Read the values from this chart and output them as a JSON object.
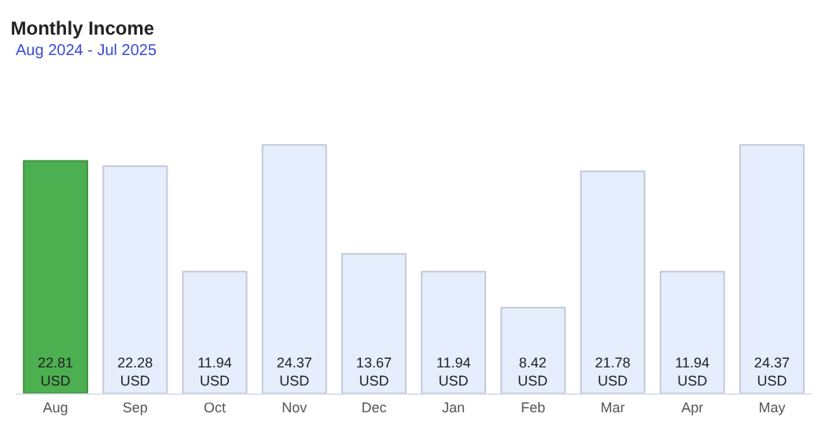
{
  "chart_data": {
    "type": "bar",
    "title": "Monthly Income",
    "subtitle": "Aug 2024 - Jul 2025",
    "categories": [
      "Aug",
      "Sep",
      "Oct",
      "Nov",
      "Dec",
      "Jan",
      "Feb",
      "Mar",
      "Apr",
      "May"
    ],
    "values": [
      22.81,
      22.28,
      11.94,
      24.37,
      13.67,
      11.94,
      8.42,
      21.78,
      11.94,
      24.37
    ],
    "value_labels": [
      "22.81 USD",
      "22.28 USD",
      "11.94 USD",
      "24.37 USD",
      "13.67 USD",
      "11.94 USD",
      "8.42 USD",
      "21.78 USD",
      "11.94 USD",
      "24.37 USD"
    ],
    "colors": [
      "#4caf50",
      "#e6edfd",
      "#e6edfd",
      "#e6edfd",
      "#e6edfd",
      "#e6edfd",
      "#e6edfd",
      "#e6edfd",
      "#e6edfd",
      "#e6edfd"
    ],
    "legend": false
  }
}
